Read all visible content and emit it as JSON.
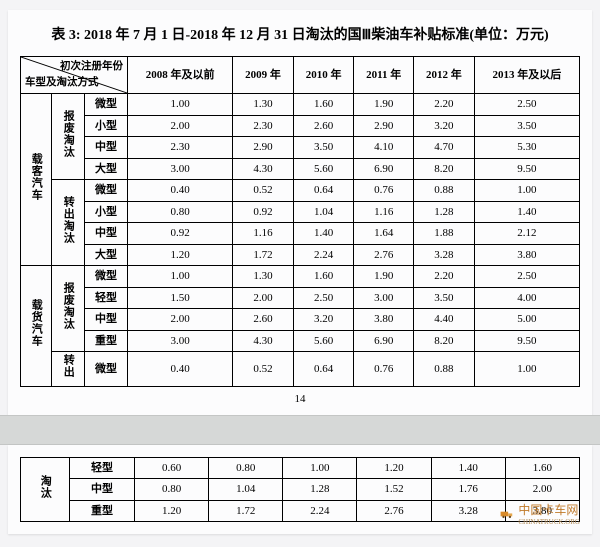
{
  "title": "表 3: 2018 年 7 月 1 日-2018 年 12 月 31 日淘汰的国Ⅲ柴油车补贴标准(单位：万元)",
  "diag_top": "初次注册年份",
  "diag_bot": "车型及淘汰方式",
  "year_headers": [
    "2008 年及以前",
    "2009 年",
    "2010 年",
    "2011 年",
    "2012 年",
    "2013 年及以后"
  ],
  "groups": [
    {
      "category": "载客汽车",
      "subgroups": [
        {
          "method": "报废淘汰",
          "rows": [
            {
              "type": "微型",
              "vals": [
                "1.00",
                "1.30",
                "1.60",
                "1.90",
                "2.20",
                "2.50"
              ]
            },
            {
              "type": "小型",
              "vals": [
                "2.00",
                "2.30",
                "2.60",
                "2.90",
                "3.20",
                "3.50"
              ]
            },
            {
              "type": "中型",
              "vals": [
                "2.30",
                "2.90",
                "3.50",
                "4.10",
                "4.70",
                "5.30"
              ]
            },
            {
              "type": "大型",
              "vals": [
                "3.00",
                "4.30",
                "5.60",
                "6.90",
                "8.20",
                "9.50"
              ]
            }
          ]
        },
        {
          "method": "转出淘汰",
          "rows": [
            {
              "type": "微型",
              "vals": [
                "0.40",
                "0.52",
                "0.64",
                "0.76",
                "0.88",
                "1.00"
              ]
            },
            {
              "type": "小型",
              "vals": [
                "0.80",
                "0.92",
                "1.04",
                "1.16",
                "1.28",
                "1.40"
              ]
            },
            {
              "type": "中型",
              "vals": [
                "0.92",
                "1.16",
                "1.40",
                "1.64",
                "1.88",
                "2.12"
              ]
            },
            {
              "type": "大型",
              "vals": [
                "1.20",
                "1.72",
                "2.24",
                "2.76",
                "3.28",
                "3.80"
              ]
            }
          ]
        }
      ]
    },
    {
      "category": "载货汽车",
      "subgroups": [
        {
          "method": "报废淘汰",
          "rows": [
            {
              "type": "微型",
              "vals": [
                "1.00",
                "1.30",
                "1.60",
                "1.90",
                "2.20",
                "2.50"
              ]
            },
            {
              "type": "轻型",
              "vals": [
                "1.50",
                "2.00",
                "2.50",
                "3.00",
                "3.50",
                "4.00"
              ]
            },
            {
              "type": "中型",
              "vals": [
                "2.00",
                "2.60",
                "3.20",
                "3.80",
                "4.40",
                "5.00"
              ]
            },
            {
              "type": "重型",
              "vals": [
                "3.00",
                "4.30",
                "5.60",
                "6.90",
                "8.20",
                "9.50"
              ]
            }
          ]
        },
        {
          "method": "转出",
          "rows": [
            {
              "type": "微型",
              "vals": [
                "0.40",
                "0.52",
                "0.64",
                "0.76",
                "0.88",
                "1.00"
              ]
            }
          ]
        }
      ]
    }
  ],
  "page_number": "14",
  "page2": {
    "method": "淘汰",
    "rows": [
      {
        "type": "轻型",
        "vals": [
          "0.60",
          "0.80",
          "1.00",
          "1.20",
          "1.40",
          "1.60"
        ]
      },
      {
        "type": "中型",
        "vals": [
          "0.80",
          "1.04",
          "1.28",
          "1.52",
          "1.76",
          "2.00"
        ]
      },
      {
        "type": "重型",
        "vals": [
          "1.20",
          "1.72",
          "2.24",
          "2.76",
          "3.28",
          "3.80"
        ]
      }
    ]
  },
  "watermark_text": "中国卡车网",
  "watermark_url": "CHINATRUCK.ORG",
  "colwidths": {
    "cat": 22,
    "method": 24,
    "type": 34
  }
}
